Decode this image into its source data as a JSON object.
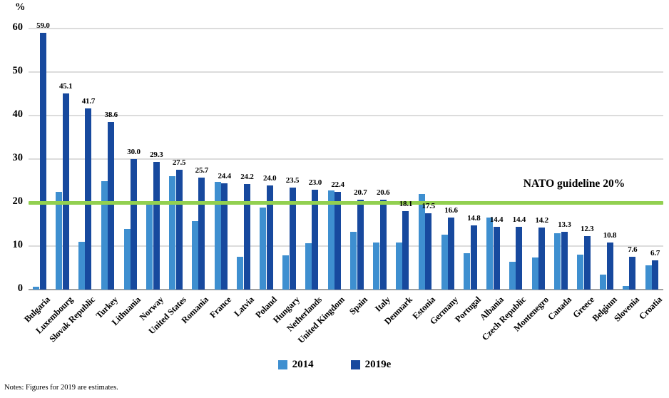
{
  "y_axis": {
    "unit_label": "%",
    "ticks": [
      0,
      10,
      20,
      30,
      40,
      50,
      60
    ]
  },
  "guideline_label": "NATO guideline 20%",
  "notes": "Notes: Figures for 2019 are estimates.",
  "colors": {
    "series_2014": "#3E8FD0",
    "series_2019e": "#17499E",
    "guideline": "#92D050",
    "gridline": "#DCDCDC",
    "axis_line": "#A0A0A0"
  },
  "legend": {
    "items": [
      {
        "label": "2014",
        "color": "#3E8FD0"
      },
      {
        "label": "2019e",
        "color": "#17499E"
      }
    ]
  },
  "chart_data": {
    "type": "bar",
    "ylabel": "%",
    "ylim": [
      0,
      60
    ],
    "y_tick_step": 10,
    "grid": true,
    "legend_position": "bottom",
    "guideline": {
      "label": "NATO guideline 20%",
      "value": 20
    },
    "categories": [
      "Bulgaria",
      "Luxembourg",
      "Slovak Republic",
      "Turkey",
      "Lithuania",
      "Norway",
      "United States",
      "Romania",
      "France",
      "Latvia",
      "Poland",
      "Hungary",
      "Netherlands",
      "United Kingdom",
      "Spain",
      "Italy",
      "Denmark",
      "Estonia",
      "Germany",
      "Portugal",
      "Albania",
      "Czech Republic",
      "Montenegro",
      "Canada",
      "Greece",
      "Belgium",
      "Slovenia",
      "Croatia"
    ],
    "series": [
      {
        "name": "2014",
        "color": "#3E8FD0",
        "labels_shown": false,
        "values": [
          0.7,
          22.5,
          11.0,
          25.0,
          14.0,
          19.8,
          26.0,
          15.7,
          24.7,
          7.5,
          18.9,
          7.9,
          10.6,
          22.8,
          13.3,
          10.8,
          10.9,
          22.0,
          12.7,
          8.3,
          16.6,
          6.4,
          7.3,
          12.9,
          8.0,
          3.5,
          0.8,
          5.5
        ]
      },
      {
        "name": "2019e",
        "color": "#17499E",
        "labels_shown": true,
        "values": [
          59.0,
          45.1,
          41.7,
          38.6,
          30.0,
          29.3,
          27.5,
          25.7,
          24.4,
          24.2,
          24.0,
          23.5,
          23.0,
          22.4,
          20.7,
          20.6,
          18.1,
          17.5,
          16.6,
          14.8,
          14.4,
          14.4,
          14.2,
          13.3,
          12.3,
          10.8,
          7.6,
          6.7
        ]
      }
    ]
  }
}
